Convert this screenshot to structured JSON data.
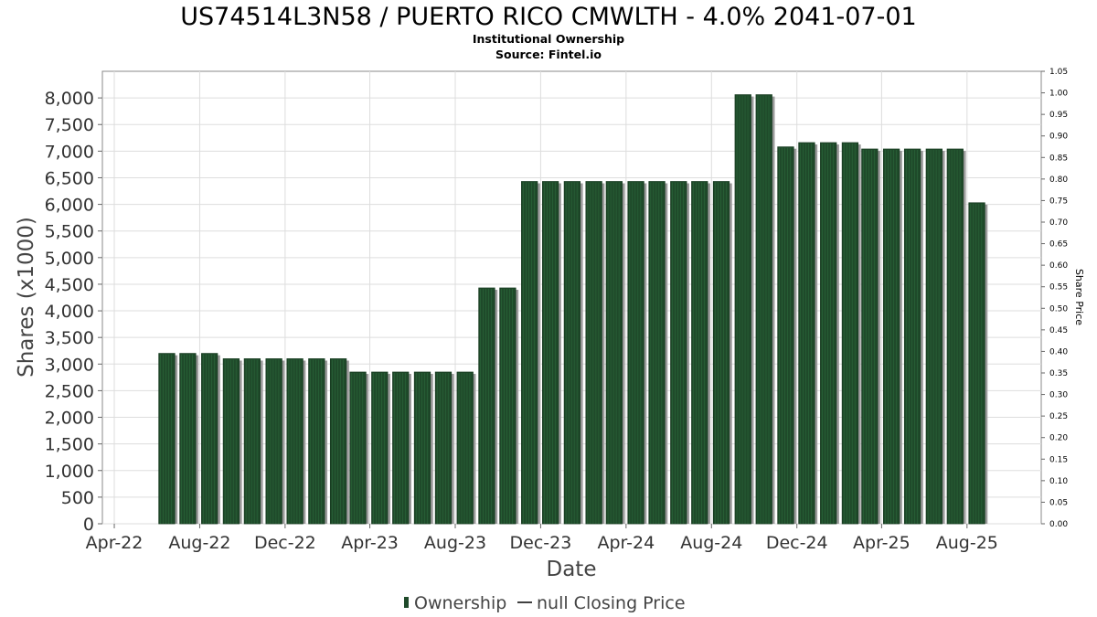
{
  "chart_data": {
    "type": "bar",
    "title": "US74514L3N58 / PUERTO RICO CMWLTH - 4.0% 2041-07-01",
    "subtitle_lines": [
      "Institutional Ownership",
      "Source: Fintel.io"
    ],
    "xlabel": "Date",
    "ylabel": "Shares (x1000)",
    "y2label": "Share Price",
    "ylim": [
      0,
      8500
    ],
    "y2lim": [
      0,
      1.05
    ],
    "x_range": [
      "2022-03-15",
      "2025-11-15"
    ],
    "y_ticks": [
      0,
      500,
      1000,
      1500,
      2000,
      2500,
      3000,
      3500,
      4000,
      4500,
      5000,
      5500,
      6000,
      6500,
      7000,
      7500,
      8000
    ],
    "y_tick_labels": [
      "0",
      "500",
      "1,000",
      "1,500",
      "2,000",
      "2,500",
      "3,000",
      "3,500",
      "4,000",
      "4,500",
      "5,000",
      "5,500",
      "6,000",
      "6,500",
      "7,000",
      "7,500",
      "8,000"
    ],
    "y2_ticks": [
      "0.00",
      "0.05",
      "0.10",
      "0.15",
      "0.20",
      "0.25",
      "0.30",
      "0.35",
      "0.40",
      "0.45",
      "0.50",
      "0.55",
      "0.60",
      "0.65",
      "0.70",
      "0.75",
      "0.80",
      "0.85",
      "0.90",
      "0.95",
      "1.00",
      "1.05"
    ],
    "x_ticks": [
      {
        "date": "2022-04-01",
        "label": "Apr-22"
      },
      {
        "date": "2022-08-01",
        "label": "Aug-22"
      },
      {
        "date": "2022-12-01",
        "label": "Dec-22"
      },
      {
        "date": "2023-04-01",
        "label": "Apr-23"
      },
      {
        "date": "2023-08-01",
        "label": "Aug-23"
      },
      {
        "date": "2023-12-01",
        "label": "Dec-23"
      },
      {
        "date": "2024-04-01",
        "label": "Apr-24"
      },
      {
        "date": "2024-08-01",
        "label": "Aug-24"
      },
      {
        "date": "2024-12-01",
        "label": "Dec-24"
      },
      {
        "date": "2025-04-01",
        "label": "Apr-25"
      },
      {
        "date": "2025-08-01",
        "label": "Aug-25"
      }
    ],
    "grid": true,
    "legend_position": "bottom-center",
    "series": [
      {
        "name": "Ownership",
        "color": "#1f4a2a",
        "points": [
          {
            "x": "2022-06-15",
            "y": 3200
          },
          {
            "x": "2022-07-15",
            "y": 3200
          },
          {
            "x": "2022-08-15",
            "y": 3200
          },
          {
            "x": "2022-09-15",
            "y": 3100
          },
          {
            "x": "2022-10-15",
            "y": 3100
          },
          {
            "x": "2022-11-15",
            "y": 3100
          },
          {
            "x": "2022-12-15",
            "y": 3100
          },
          {
            "x": "2023-01-15",
            "y": 3100
          },
          {
            "x": "2023-02-15",
            "y": 3100
          },
          {
            "x": "2023-03-15",
            "y": 2850
          },
          {
            "x": "2023-04-15",
            "y": 2850
          },
          {
            "x": "2023-05-15",
            "y": 2850
          },
          {
            "x": "2023-06-15",
            "y": 2850
          },
          {
            "x": "2023-07-15",
            "y": 2850
          },
          {
            "x": "2023-08-15",
            "y": 2850
          },
          {
            "x": "2023-09-15",
            "y": 4430
          },
          {
            "x": "2023-10-15",
            "y": 4430
          },
          {
            "x": "2023-11-15",
            "y": 6430
          },
          {
            "x": "2023-12-15",
            "y": 6430
          },
          {
            "x": "2024-01-15",
            "y": 6430
          },
          {
            "x": "2024-02-15",
            "y": 6430
          },
          {
            "x": "2024-03-15",
            "y": 6430
          },
          {
            "x": "2024-04-15",
            "y": 6430
          },
          {
            "x": "2024-05-15",
            "y": 6430
          },
          {
            "x": "2024-06-15",
            "y": 6430
          },
          {
            "x": "2024-07-15",
            "y": 6430
          },
          {
            "x": "2024-08-15",
            "y": 6430
          },
          {
            "x": "2024-09-15",
            "y": 8060
          },
          {
            "x": "2024-10-15",
            "y": 8060
          },
          {
            "x": "2024-11-15",
            "y": 7080
          },
          {
            "x": "2024-12-15",
            "y": 7160
          },
          {
            "x": "2025-01-15",
            "y": 7160
          },
          {
            "x": "2025-02-15",
            "y": 7160
          },
          {
            "x": "2025-03-15",
            "y": 7040
          },
          {
            "x": "2025-04-15",
            "y": 7040
          },
          {
            "x": "2025-05-15",
            "y": 7040
          },
          {
            "x": "2025-06-15",
            "y": 7040
          },
          {
            "x": "2025-07-15",
            "y": 7040
          },
          {
            "x": "2025-08-15",
            "y": 6030
          }
        ]
      },
      {
        "name": "null Closing Price",
        "color": "#000000",
        "points": []
      }
    ]
  }
}
